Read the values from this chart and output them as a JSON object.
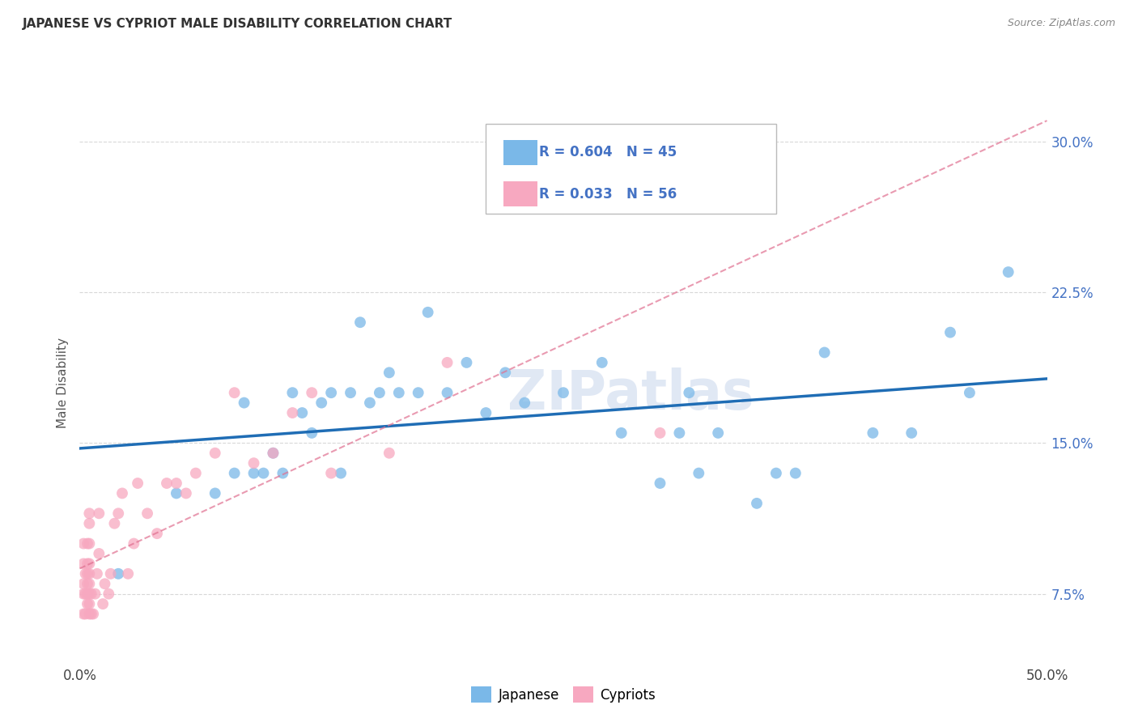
{
  "title": "JAPANESE VS CYPRIOT MALE DISABILITY CORRELATION CHART",
  "source": "Source: ZipAtlas.com",
  "ylabel": "Male Disability",
  "watermark": "ZIPatlas",
  "xlim": [
    0.0,
    0.5
  ],
  "ylim": [
    0.04,
    0.32
  ],
  "xtick_vals": [
    0.0,
    0.1,
    0.2,
    0.3,
    0.4,
    0.5
  ],
  "xtick_labels": [
    "0.0%",
    "",
    "",
    "",
    "",
    "50.0%"
  ],
  "ytick_vals": [
    0.075,
    0.15,
    0.225,
    0.3
  ],
  "ytick_labels": [
    "7.5%",
    "15.0%",
    "22.5%",
    "30.0%"
  ],
  "japanese_R": 0.604,
  "japanese_N": 45,
  "cypriot_R": 0.033,
  "cypriot_N": 56,
  "japanese_color": "#7ab8e8",
  "cypriot_color": "#f7a8c0",
  "japanese_line_color": "#1f6db5",
  "cypriot_line_color": "#e07090",
  "background_color": "#ffffff",
  "grid_color": "#d8d8d8",
  "legend_text_color": "#4472c4",
  "japanese_x": [
    0.02,
    0.05,
    0.07,
    0.08,
    0.085,
    0.09,
    0.095,
    0.1,
    0.105,
    0.11,
    0.115,
    0.12,
    0.125,
    0.13,
    0.135,
    0.14,
    0.145,
    0.15,
    0.155,
    0.16,
    0.165,
    0.175,
    0.18,
    0.19,
    0.2,
    0.21,
    0.22,
    0.23,
    0.25,
    0.27,
    0.28,
    0.3,
    0.31,
    0.315,
    0.32,
    0.33,
    0.35,
    0.36,
    0.37,
    0.385,
    0.41,
    0.43,
    0.45,
    0.46,
    0.48
  ],
  "japanese_y": [
    0.085,
    0.125,
    0.125,
    0.135,
    0.17,
    0.135,
    0.135,
    0.145,
    0.135,
    0.175,
    0.165,
    0.155,
    0.17,
    0.175,
    0.135,
    0.175,
    0.21,
    0.17,
    0.175,
    0.185,
    0.175,
    0.175,
    0.215,
    0.175,
    0.19,
    0.165,
    0.185,
    0.17,
    0.175,
    0.19,
    0.155,
    0.13,
    0.155,
    0.175,
    0.135,
    0.155,
    0.12,
    0.135,
    0.135,
    0.195,
    0.155,
    0.155,
    0.205,
    0.175,
    0.235
  ],
  "cypriot_x": [
    0.002,
    0.002,
    0.002,
    0.002,
    0.002,
    0.003,
    0.003,
    0.003,
    0.004,
    0.004,
    0.004,
    0.004,
    0.004,
    0.004,
    0.005,
    0.005,
    0.005,
    0.005,
    0.005,
    0.005,
    0.005,
    0.005,
    0.005,
    0.006,
    0.006,
    0.007,
    0.008,
    0.009,
    0.01,
    0.01,
    0.012,
    0.013,
    0.015,
    0.016,
    0.018,
    0.02,
    0.022,
    0.025,
    0.028,
    0.03,
    0.035,
    0.04,
    0.045,
    0.05,
    0.055,
    0.06,
    0.07,
    0.08,
    0.09,
    0.1,
    0.11,
    0.12,
    0.13,
    0.16,
    0.19,
    0.3
  ],
  "cypriot_y": [
    0.065,
    0.075,
    0.08,
    0.09,
    0.1,
    0.065,
    0.075,
    0.085,
    0.07,
    0.075,
    0.08,
    0.085,
    0.09,
    0.1,
    0.065,
    0.07,
    0.075,
    0.08,
    0.085,
    0.09,
    0.1,
    0.11,
    0.115,
    0.065,
    0.075,
    0.065,
    0.075,
    0.085,
    0.095,
    0.115,
    0.07,
    0.08,
    0.075,
    0.085,
    0.11,
    0.115,
    0.125,
    0.085,
    0.1,
    0.13,
    0.115,
    0.105,
    0.13,
    0.13,
    0.125,
    0.135,
    0.145,
    0.175,
    0.14,
    0.145,
    0.165,
    0.175,
    0.135,
    0.145,
    0.19,
    0.155
  ]
}
